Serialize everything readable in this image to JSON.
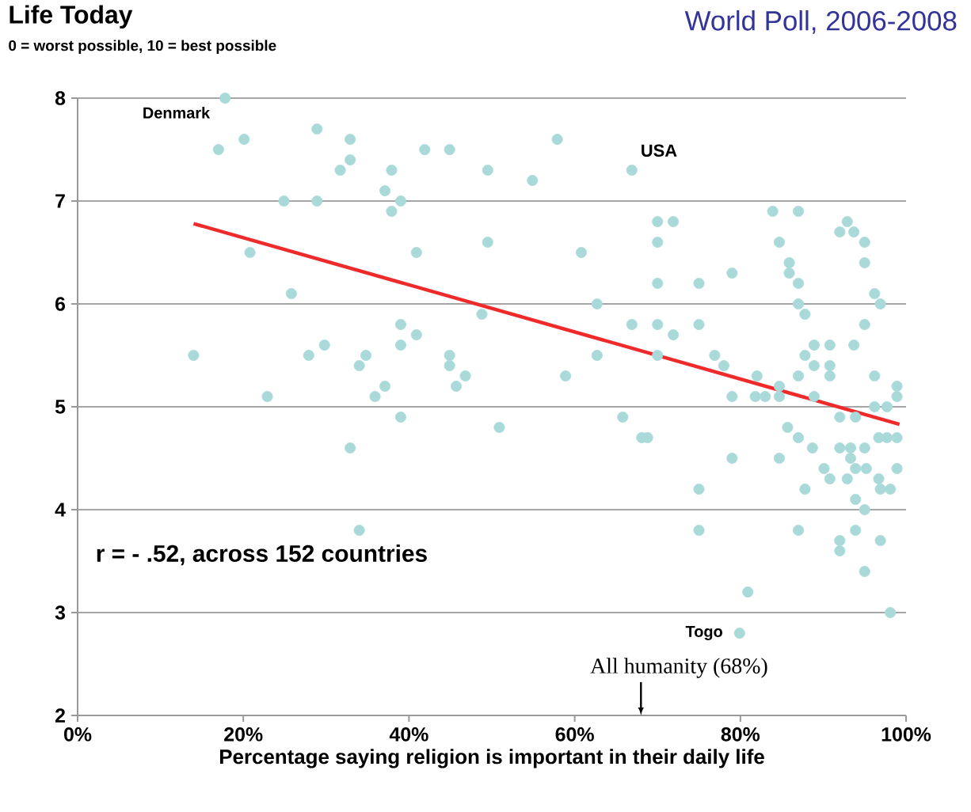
{
  "chart_data": {
    "type": "scatter",
    "title": "Life Today",
    "subtitle": "0 = worst possible, 10 = best possible",
    "xlabel": "Percentage saying religion is important in their daily life",
    "xlim": [
      0,
      100
    ],
    "ylim": [
      2,
      8
    ],
    "xticks": [
      {
        "value": 0,
        "label": "0%"
      },
      {
        "value": 20,
        "label": "20%"
      },
      {
        "value": 40,
        "label": "40%"
      },
      {
        "value": 60,
        "label": "60%"
      },
      {
        "value": 80,
        "label": "80%"
      },
      {
        "value": 100,
        "label": "100%"
      }
    ],
    "yticks": [
      2,
      3,
      4,
      5,
      6,
      7,
      8
    ],
    "grid": "y",
    "marker": "circle",
    "series": [
      {
        "color": "#a9d9d9",
        "x": [
          17.8,
          17.0,
          20.1,
          28.9,
          32.9,
          32.9,
          31.7,
          37.9,
          41.9,
          44.9,
          49.5,
          24.9,
          28.9,
          37.1,
          39.0,
          37.9,
          20.8,
          40.9,
          49.5,
          25.8,
          48.8,
          39.0,
          40.9,
          39.0,
          29.8,
          27.9,
          14.0,
          34.8,
          34.0,
          44.9,
          44.9,
          46.8,
          45.7,
          37.1,
          35.9,
          22.9,
          39.0,
          32.9,
          34.0,
          57.9,
          54.9,
          66.9,
          70.0,
          71.9,
          70.0,
          60.8,
          83.9,
          87.0,
          84.7,
          85.9,
          85.9,
          87.0,
          79.0,
          70.0,
          75.0,
          62.7,
          87.0,
          87.8,
          92.0,
          92.9,
          93.7,
          95.0,
          95.0,
          96.2,
          96.9,
          95.0,
          93.7,
          90.8,
          88.9,
          87.8,
          88.9,
          90.8,
          90.8,
          87.0,
          96.2,
          66.9,
          70.0,
          71.9,
          75.0,
          62.7,
          70.0,
          58.9,
          76.9,
          78.0,
          82.0,
          79.0,
          81.8,
          83.0,
          84.7,
          84.7,
          88.9,
          98.9,
          98.9,
          50.9,
          65.8,
          68.1,
          68.8,
          85.7,
          87.0,
          92.0,
          93.9,
          96.2,
          97.7,
          96.7,
          97.7,
          98.9,
          88.7,
          92.0,
          93.3,
          95.0,
          79.0,
          84.7,
          90.1,
          93.3,
          93.9,
          95.2,
          98.9,
          90.8,
          92.9,
          96.7,
          87.8,
          96.9,
          98.1,
          75.0,
          93.9,
          95.0,
          75.0,
          87.0,
          92.0,
          92.0,
          93.9,
          96.9,
          95.0,
          80.9,
          98.1,
          79.9
        ],
        "values": [
          8.0,
          7.5,
          7.6,
          7.7,
          7.6,
          7.4,
          7.3,
          7.3,
          7.5,
          7.5,
          7.3,
          7.0,
          7.0,
          7.1,
          7.0,
          6.9,
          6.5,
          6.5,
          6.6,
          6.1,
          5.9,
          5.8,
          5.7,
          5.6,
          5.6,
          5.5,
          5.5,
          5.5,
          5.4,
          5.5,
          5.4,
          5.3,
          5.2,
          5.2,
          5.1,
          5.1,
          4.9,
          4.6,
          3.8,
          7.6,
          7.2,
          7.3,
          6.8,
          6.8,
          6.6,
          6.5,
          6.9,
          6.9,
          6.6,
          6.4,
          6.3,
          6.2,
          6.3,
          6.2,
          6.2,
          6.0,
          6.0,
          5.9,
          6.7,
          6.8,
          6.7,
          6.6,
          6.4,
          6.1,
          6.0,
          5.8,
          5.6,
          5.6,
          5.6,
          5.5,
          5.4,
          5.4,
          5.3,
          5.3,
          5.3,
          5.8,
          5.8,
          5.7,
          5.8,
          5.5,
          5.5,
          5.3,
          5.5,
          5.4,
          5.3,
          5.1,
          5.1,
          5.1,
          5.2,
          5.1,
          5.1,
          5.2,
          5.1,
          4.8,
          4.9,
          4.7,
          4.7,
          4.8,
          4.7,
          4.9,
          4.9,
          5.0,
          5.0,
          4.7,
          4.7,
          4.7,
          4.6,
          4.6,
          4.6,
          4.6,
          4.5,
          4.5,
          4.4,
          4.5,
          4.4,
          4.4,
          4.4,
          4.3,
          4.3,
          4.3,
          4.2,
          4.2,
          4.2,
          4.2,
          4.1,
          4.0,
          3.8,
          3.8,
          3.7,
          3.6,
          3.8,
          3.7,
          3.4,
          3.2,
          3.0,
          2.8
        ]
      },
      {
        "type": "line",
        "color": "#ee2a2a",
        "marker": "none",
        "x": [
          14,
          99.2
        ],
        "values": [
          6.78,
          4.83
        ]
      }
    ],
    "annotations": [
      "r = - .52, across 152 countries",
      "World Poll, 2006-2008",
      {
        "text": "Denmark",
        "x": 17.8,
        "y": 8.0
      },
      {
        "text": "USA",
        "x": 66.9,
        "y": 7.3
      },
      {
        "text": "Togo",
        "x": 79.9,
        "y": 2.8
      },
      "All humanity (68%)"
    ]
  }
}
